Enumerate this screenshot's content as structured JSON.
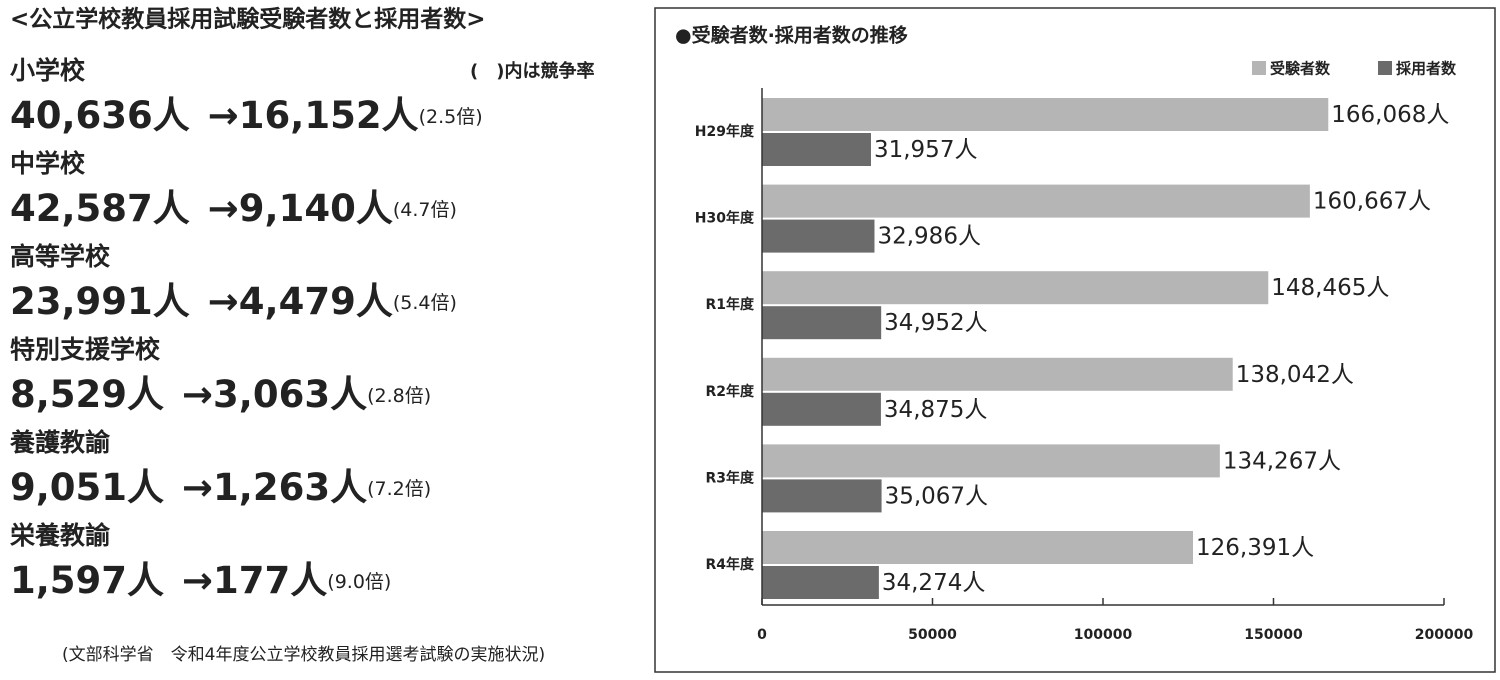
{
  "left_panel": {
    "title": "<公立学校教員採用試験受験者数と採用者数>",
    "note": "(　)内は競争率",
    "items": [
      {
        "name": "小学校",
        "applicants": "40,636人",
        "hired": "→16,152人",
        "ratio": "(2.5倍)"
      },
      {
        "name": "中学校",
        "applicants": "42,587人",
        "hired": "→9,140人",
        "ratio": "(4.7倍)"
      },
      {
        "name": "高等学校",
        "applicants": "23,991人",
        "hired": "→4,479人",
        "ratio": "(5.4倍)"
      },
      {
        "name": "特別支援学校",
        "applicants": "8,529人",
        "hired": "→3,063人",
        "ratio": "(2.8倍)"
      },
      {
        "name": "養護教諭",
        "applicants": "9,051人",
        "hired": "→1,263人",
        "ratio": "(7.2倍)"
      },
      {
        "name": "栄養教諭",
        "applicants": "1,597人",
        "hired": "→177人",
        "ratio": "(9.0倍)"
      }
    ],
    "source": "(文部科学省　令和4年度公立学校教員採用選考試験の実施状況)"
  },
  "chart_data": {
    "type": "bar",
    "orientation": "horizontal",
    "title": "●受験者数·採用者数の推移",
    "categories": [
      "H29年度",
      "H30年度",
      "R1年度",
      "R2年度",
      "R3年度",
      "R4年度"
    ],
    "series": [
      {
        "name": "受験者数",
        "color": "#b5b5b5",
        "values": [
          166068,
          160667,
          148465,
          138042,
          134267,
          126391
        ],
        "value_labels": [
          "166,068人",
          "160,667人",
          "148,465人",
          "138,042人",
          "134,267人",
          "126,391人"
        ]
      },
      {
        "name": "採用者数",
        "color": "#6b6b6b",
        "values": [
          31957,
          32986,
          34952,
          34875,
          35067,
          34274
        ],
        "value_labels": [
          "31,957人",
          "32,986人",
          "34,952人",
          "34,875人",
          "35,067人",
          "34,274人"
        ]
      }
    ],
    "xlim": [
      0,
      200000
    ],
    "xticks": [
      0,
      50000,
      100000,
      150000,
      200000
    ],
    "legend": "top-right"
  }
}
